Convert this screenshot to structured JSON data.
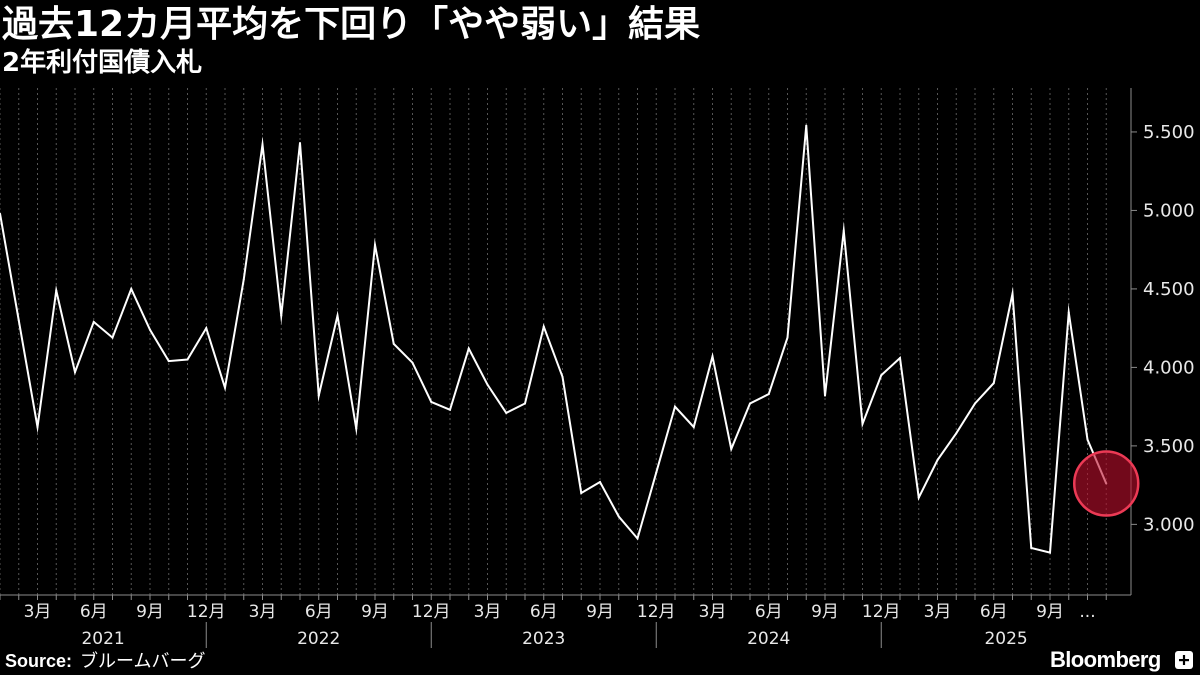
{
  "colors": {
    "background": "#000000",
    "line": "#ffffff",
    "text": "#ffffff",
    "axis": "#8c8c8c",
    "grid": "#555555",
    "highlight_fill": "rgba(190, 15, 45, 0.6)",
    "highlight_stroke": "#ec3a55"
  },
  "source": {
    "label": "Source:",
    "text": "ブルームバーグ"
  },
  "brand": {
    "name": "Bloomberg",
    "icon": "bloomberg-terminal-icon"
  },
  "chart_data": {
    "type": "line",
    "title": "過去12カ月平均を下回り「やや弱い」結果",
    "subtitle": "2年利付国債入札",
    "x": [
      "2021-01",
      "2021-02",
      "2021-03",
      "2021-04",
      "2021-05",
      "2021-06",
      "2021-07",
      "2021-08",
      "2021-09",
      "2021-10",
      "2021-11",
      "2021-12",
      "2022-01",
      "2022-02",
      "2022-03",
      "2022-04",
      "2022-05",
      "2022-06",
      "2022-07",
      "2022-08",
      "2022-09",
      "2022-10",
      "2022-11",
      "2022-12",
      "2023-01",
      "2023-02",
      "2023-03",
      "2023-04",
      "2023-05",
      "2023-06",
      "2023-07",
      "2023-08",
      "2023-09",
      "2023-10",
      "2023-11",
      "2023-12",
      "2024-01",
      "2024-02",
      "2024-03",
      "2024-04",
      "2024-05",
      "2024-06",
      "2024-07",
      "2024-08",
      "2024-09",
      "2024-10",
      "2024-11",
      "2024-12",
      "2025-01",
      "2025-02",
      "2025-03",
      "2025-04",
      "2025-05",
      "2025-06",
      "2025-07",
      "2025-08",
      "2025-09",
      "2025-10",
      "2025-11",
      "2025-12"
    ],
    "series": [
      {
        "values": [
          4.98,
          4.3,
          3.62,
          4.49,
          3.97,
          4.29,
          4.19,
          4.5,
          4.24,
          4.04,
          4.05,
          4.25,
          3.87,
          4.56,
          5.42,
          4.33,
          5.43,
          3.82,
          4.33,
          3.61,
          4.78,
          4.15,
          4.03,
          3.78,
          3.73,
          4.12,
          3.89,
          3.71,
          3.77,
          4.26,
          3.94,
          3.2,
          3.27,
          3.05,
          2.91,
          3.33,
          3.75,
          3.62,
          4.07,
          3.48,
          3.77,
          3.83,
          4.19,
          5.54,
          3.82,
          4.87,
          3.64,
          3.95,
          4.06,
          3.17,
          3.41,
          3.58,
          3.77,
          3.9,
          4.47,
          2.85,
          2.82,
          4.35,
          3.54,
          3.26
        ]
      }
    ],
    "ylim": [
      2.55,
      5.78
    ],
    "y_axis_side": "right",
    "y_ticks": [
      {
        "value": 3.0,
        "label": "3.000"
      },
      {
        "value": 3.5,
        "label": "3.500"
      },
      {
        "value": 4.0,
        "label": "4.000"
      },
      {
        "value": 4.5,
        "label": "4.500"
      },
      {
        "value": 5.0,
        "label": "5.000"
      },
      {
        "value": 5.5,
        "label": "5.500"
      }
    ],
    "x_ticks": [
      {
        "label": "3月",
        "x": "2021-03"
      },
      {
        "label": "6月",
        "x": "2021-06"
      },
      {
        "label": "9月",
        "x": "2021-09"
      },
      {
        "label": "12月",
        "x": "2021-12"
      },
      {
        "label": "3月",
        "x": "2022-03"
      },
      {
        "label": "6月",
        "x": "2022-06"
      },
      {
        "label": "9月",
        "x": "2022-09"
      },
      {
        "label": "12月",
        "x": "2022-12"
      },
      {
        "label": "3月",
        "x": "2023-03"
      },
      {
        "label": "6月",
        "x": "2023-06"
      },
      {
        "label": "9月",
        "x": "2023-09"
      },
      {
        "label": "12月",
        "x": "2023-12"
      },
      {
        "label": "3月",
        "x": "2024-03"
      },
      {
        "label": "6月",
        "x": "2024-06"
      },
      {
        "label": "9月",
        "x": "2024-09"
      },
      {
        "label": "12月",
        "x": "2024-12"
      },
      {
        "label": "3月",
        "x": "2025-03"
      },
      {
        "label": "6月",
        "x": "2025-06"
      },
      {
        "label": "9月",
        "x": "2025-09"
      },
      {
        "label": "...",
        "x": "2025-11"
      }
    ],
    "x_years": [
      "2021",
      "2022",
      "2023",
      "2024",
      "2025"
    ],
    "grid": {
      "vertical": true,
      "horizontal": false
    },
    "highlight": {
      "x": "2025-12",
      "value": 3.26
    }
  }
}
